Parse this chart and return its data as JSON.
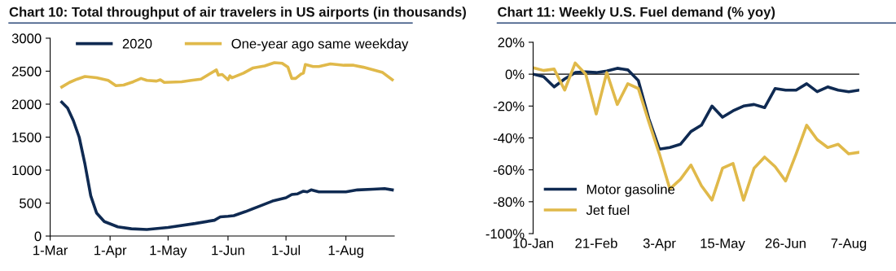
{
  "chart_data": [
    {
      "type": "line",
      "title": "Chart 10: Total throughput of air travelers in US airports (in thousands)",
      "xlim": [
        "2020-03-01",
        "2020-08-26"
      ],
      "xticks": [
        {
          "value": "2020-03-01",
          "label": "1-Mar"
        },
        {
          "value": "2020-04-01",
          "label": "1-Apr"
        },
        {
          "value": "2020-05-01",
          "label": "1-May"
        },
        {
          "value": "2020-06-01",
          "label": "1-Jun"
        },
        {
          "value": "2020-07-01",
          "label": "1-Jul"
        },
        {
          "value": "2020-08-01",
          "label": "1-Aug"
        }
      ],
      "ylim": [
        0,
        3000
      ],
      "yticks": [
        0,
        500,
        1000,
        1500,
        2000,
        2500,
        3000
      ],
      "grid": false,
      "legend": "top",
      "marker": "none",
      "line_style": "solid",
      "series": [
        {
          "name": "2020",
          "color": "#0f2a52",
          "x": [
            "2020-03-07",
            "2020-03-10",
            "2020-03-13",
            "2020-03-16",
            "2020-03-19",
            "2020-03-22",
            "2020-03-25",
            "2020-03-29",
            "2020-04-05",
            "2020-04-12",
            "2020-04-20",
            "2020-05-01",
            "2020-05-15",
            "2020-05-25",
            "2020-05-28",
            "2020-06-01",
            "2020-06-04",
            "2020-06-10",
            "2020-06-17",
            "2020-06-24",
            "2020-07-01",
            "2020-07-04",
            "2020-07-07",
            "2020-07-10",
            "2020-07-12",
            "2020-07-14",
            "2020-07-18",
            "2020-08-01",
            "2020-08-07",
            "2020-08-15",
            "2020-08-21",
            "2020-08-25"
          ],
          "values": [
            2030,
            1940,
            1750,
            1500,
            1090,
            610,
            350,
            220,
            140,
            110,
            100,
            130,
            190,
            240,
            290,
            300,
            310,
            370,
            450,
            530,
            580,
            630,
            640,
            680,
            670,
            700,
            670,
            670,
            700,
            710,
            720,
            700
          ]
        },
        {
          "name": "One-year ago same weekday",
          "color": "#e0b94a",
          "x": [
            "2020-03-07",
            "2020-03-11",
            "2020-03-15",
            "2020-03-19",
            "2020-03-25",
            "2020-03-31",
            "2020-04-04",
            "2020-04-08",
            "2020-04-13",
            "2020-04-17",
            "2020-04-20",
            "2020-04-25",
            "2020-04-27",
            "2020-04-29",
            "2020-05-08",
            "2020-05-13",
            "2020-05-18",
            "2020-05-22",
            "2020-05-26",
            "2020-05-27",
            "2020-05-29",
            "2020-06-01",
            "2020-06-02",
            "2020-06-03",
            "2020-06-09",
            "2020-06-14",
            "2020-06-20",
            "2020-06-25",
            "2020-06-29",
            "2020-07-02",
            "2020-07-04",
            "2020-07-06",
            "2020-07-09",
            "2020-07-10",
            "2020-07-11",
            "2020-07-15",
            "2020-07-18",
            "2020-07-24",
            "2020-07-31",
            "2020-08-05",
            "2020-08-10",
            "2020-08-15",
            "2020-08-20",
            "2020-08-25"
          ],
          "values": [
            2260,
            2330,
            2380,
            2420,
            2400,
            2360,
            2280,
            2290,
            2340,
            2390,
            2360,
            2350,
            2370,
            2330,
            2340,
            2360,
            2380,
            2450,
            2520,
            2440,
            2450,
            2370,
            2430,
            2400,
            2470,
            2550,
            2580,
            2630,
            2620,
            2560,
            2390,
            2390,
            2460,
            2470,
            2600,
            2570,
            2570,
            2610,
            2590,
            2590,
            2560,
            2520,
            2480,
            2370
          ]
        }
      ]
    },
    {
      "type": "line",
      "title": "Chart 11: Weekly U.S. Fuel demand (% yoy)",
      "xlim": [
        "2020-01-10",
        "2020-08-14"
      ],
      "xticks": [
        {
          "value": "2020-01-10",
          "label": "10-Jan"
        },
        {
          "value": "2020-02-21",
          "label": "21-Feb"
        },
        {
          "value": "2020-04-03",
          "label": "3-Apr"
        },
        {
          "value": "2020-05-15",
          "label": "15-May"
        },
        {
          "value": "2020-06-26",
          "label": "26-Jun"
        },
        {
          "value": "2020-08-07",
          "label": "7-Aug"
        }
      ],
      "ylim": [
        -100,
        20
      ],
      "yticks": [
        {
          "value": -100,
          "label": "-100%"
        },
        {
          "value": -80,
          "label": "-80%"
        },
        {
          "value": -60,
          "label": "-60%"
        },
        {
          "value": -40,
          "label": "-40%"
        },
        {
          "value": -20,
          "label": "-20%"
        },
        {
          "value": 0,
          "label": "0%"
        },
        {
          "value": 20,
          "label": "20%"
        }
      ],
      "grid": false,
      "ref_lines": [
        {
          "axis": "y",
          "value": 0,
          "color": "#000000"
        }
      ],
      "legend": "bottom left",
      "marker": "none",
      "line_style": "solid",
      "x": [
        "2020-01-10",
        "2020-01-17",
        "2020-01-24",
        "2020-01-31",
        "2020-02-07",
        "2020-02-14",
        "2020-02-21",
        "2020-02-28",
        "2020-03-06",
        "2020-03-13",
        "2020-03-20",
        "2020-03-27",
        "2020-04-03",
        "2020-04-10",
        "2020-04-17",
        "2020-04-24",
        "2020-05-01",
        "2020-05-08",
        "2020-05-15",
        "2020-05-22",
        "2020-05-29",
        "2020-06-05",
        "2020-06-12",
        "2020-06-19",
        "2020-06-26",
        "2020-07-03",
        "2020-07-10",
        "2020-07-17",
        "2020-07-24",
        "2020-07-31",
        "2020-08-07",
        "2020-08-14"
      ],
      "series": [
        {
          "name": "Motor gasoline",
          "color": "#0f2a52",
          "values": [
            0,
            -1.6,
            -8,
            -3,
            1,
            1.4,
            1,
            2,
            3.7,
            2.7,
            -4,
            -28,
            -47,
            -46,
            -44,
            -36,
            -32,
            -20,
            -27,
            -23,
            -20,
            -19,
            -21,
            -9,
            -10,
            -10,
            -6,
            -11,
            -8,
            -10,
            -11,
            -10
          ]
        },
        {
          "name": "Jet fuel",
          "color": "#e0b94a",
          "values": [
            4,
            2.3,
            3.2,
            -10,
            7,
            0,
            -25,
            1,
            -19,
            -6,
            -9,
            -30,
            -50,
            -72,
            -66,
            -57,
            -70,
            -79,
            -59,
            -56,
            -79,
            -59,
            -52,
            -58,
            -67,
            -50,
            -32,
            -41,
            -46,
            -44,
            -50,
            -49
          ]
        }
      ]
    }
  ]
}
